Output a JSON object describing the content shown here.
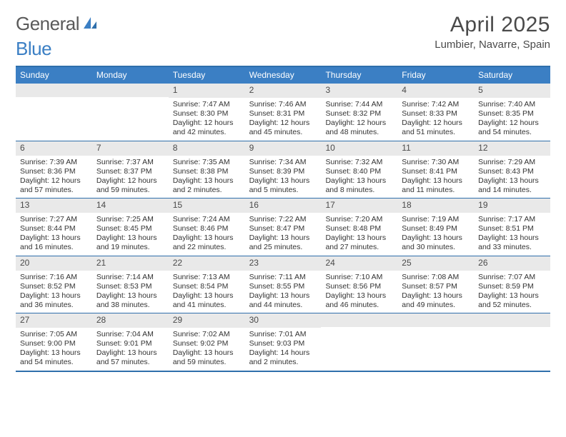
{
  "logo": {
    "text_a": "General",
    "text_b": "Blue"
  },
  "header": {
    "month_title": "April 2025",
    "location": "Lumbier, Navarre, Spain"
  },
  "colors": {
    "header_bar": "#3b7fc4",
    "header_border": "#2f6fab",
    "daynum_bg": "#e9e9e9",
    "text": "#333333",
    "title_text": "#4a4a4a"
  },
  "weekdays": [
    "Sunday",
    "Monday",
    "Tuesday",
    "Wednesday",
    "Thursday",
    "Friday",
    "Saturday"
  ],
  "weeks": [
    [
      {
        "n": "",
        "sunrise": "",
        "sunset": "",
        "daylight": ""
      },
      {
        "n": "",
        "sunrise": "",
        "sunset": "",
        "daylight": ""
      },
      {
        "n": "1",
        "sunrise": "Sunrise: 7:47 AM",
        "sunset": "Sunset: 8:30 PM",
        "daylight": "Daylight: 12 hours and 42 minutes."
      },
      {
        "n": "2",
        "sunrise": "Sunrise: 7:46 AM",
        "sunset": "Sunset: 8:31 PM",
        "daylight": "Daylight: 12 hours and 45 minutes."
      },
      {
        "n": "3",
        "sunrise": "Sunrise: 7:44 AM",
        "sunset": "Sunset: 8:32 PM",
        "daylight": "Daylight: 12 hours and 48 minutes."
      },
      {
        "n": "4",
        "sunrise": "Sunrise: 7:42 AM",
        "sunset": "Sunset: 8:33 PM",
        "daylight": "Daylight: 12 hours and 51 minutes."
      },
      {
        "n": "5",
        "sunrise": "Sunrise: 7:40 AM",
        "sunset": "Sunset: 8:35 PM",
        "daylight": "Daylight: 12 hours and 54 minutes."
      }
    ],
    [
      {
        "n": "6",
        "sunrise": "Sunrise: 7:39 AM",
        "sunset": "Sunset: 8:36 PM",
        "daylight": "Daylight: 12 hours and 57 minutes."
      },
      {
        "n": "7",
        "sunrise": "Sunrise: 7:37 AM",
        "sunset": "Sunset: 8:37 PM",
        "daylight": "Daylight: 12 hours and 59 minutes."
      },
      {
        "n": "8",
        "sunrise": "Sunrise: 7:35 AM",
        "sunset": "Sunset: 8:38 PM",
        "daylight": "Daylight: 13 hours and 2 minutes."
      },
      {
        "n": "9",
        "sunrise": "Sunrise: 7:34 AM",
        "sunset": "Sunset: 8:39 PM",
        "daylight": "Daylight: 13 hours and 5 minutes."
      },
      {
        "n": "10",
        "sunrise": "Sunrise: 7:32 AM",
        "sunset": "Sunset: 8:40 PM",
        "daylight": "Daylight: 13 hours and 8 minutes."
      },
      {
        "n": "11",
        "sunrise": "Sunrise: 7:30 AM",
        "sunset": "Sunset: 8:41 PM",
        "daylight": "Daylight: 13 hours and 11 minutes."
      },
      {
        "n": "12",
        "sunrise": "Sunrise: 7:29 AM",
        "sunset": "Sunset: 8:43 PM",
        "daylight": "Daylight: 13 hours and 14 minutes."
      }
    ],
    [
      {
        "n": "13",
        "sunrise": "Sunrise: 7:27 AM",
        "sunset": "Sunset: 8:44 PM",
        "daylight": "Daylight: 13 hours and 16 minutes."
      },
      {
        "n": "14",
        "sunrise": "Sunrise: 7:25 AM",
        "sunset": "Sunset: 8:45 PM",
        "daylight": "Daylight: 13 hours and 19 minutes."
      },
      {
        "n": "15",
        "sunrise": "Sunrise: 7:24 AM",
        "sunset": "Sunset: 8:46 PM",
        "daylight": "Daylight: 13 hours and 22 minutes."
      },
      {
        "n": "16",
        "sunrise": "Sunrise: 7:22 AM",
        "sunset": "Sunset: 8:47 PM",
        "daylight": "Daylight: 13 hours and 25 minutes."
      },
      {
        "n": "17",
        "sunrise": "Sunrise: 7:20 AM",
        "sunset": "Sunset: 8:48 PM",
        "daylight": "Daylight: 13 hours and 27 minutes."
      },
      {
        "n": "18",
        "sunrise": "Sunrise: 7:19 AM",
        "sunset": "Sunset: 8:49 PM",
        "daylight": "Daylight: 13 hours and 30 minutes."
      },
      {
        "n": "19",
        "sunrise": "Sunrise: 7:17 AM",
        "sunset": "Sunset: 8:51 PM",
        "daylight": "Daylight: 13 hours and 33 minutes."
      }
    ],
    [
      {
        "n": "20",
        "sunrise": "Sunrise: 7:16 AM",
        "sunset": "Sunset: 8:52 PM",
        "daylight": "Daylight: 13 hours and 36 minutes."
      },
      {
        "n": "21",
        "sunrise": "Sunrise: 7:14 AM",
        "sunset": "Sunset: 8:53 PM",
        "daylight": "Daylight: 13 hours and 38 minutes."
      },
      {
        "n": "22",
        "sunrise": "Sunrise: 7:13 AM",
        "sunset": "Sunset: 8:54 PM",
        "daylight": "Daylight: 13 hours and 41 minutes."
      },
      {
        "n": "23",
        "sunrise": "Sunrise: 7:11 AM",
        "sunset": "Sunset: 8:55 PM",
        "daylight": "Daylight: 13 hours and 44 minutes."
      },
      {
        "n": "24",
        "sunrise": "Sunrise: 7:10 AM",
        "sunset": "Sunset: 8:56 PM",
        "daylight": "Daylight: 13 hours and 46 minutes."
      },
      {
        "n": "25",
        "sunrise": "Sunrise: 7:08 AM",
        "sunset": "Sunset: 8:57 PM",
        "daylight": "Daylight: 13 hours and 49 minutes."
      },
      {
        "n": "26",
        "sunrise": "Sunrise: 7:07 AM",
        "sunset": "Sunset: 8:59 PM",
        "daylight": "Daylight: 13 hours and 52 minutes."
      }
    ],
    [
      {
        "n": "27",
        "sunrise": "Sunrise: 7:05 AM",
        "sunset": "Sunset: 9:00 PM",
        "daylight": "Daylight: 13 hours and 54 minutes."
      },
      {
        "n": "28",
        "sunrise": "Sunrise: 7:04 AM",
        "sunset": "Sunset: 9:01 PM",
        "daylight": "Daylight: 13 hours and 57 minutes."
      },
      {
        "n": "29",
        "sunrise": "Sunrise: 7:02 AM",
        "sunset": "Sunset: 9:02 PM",
        "daylight": "Daylight: 13 hours and 59 minutes."
      },
      {
        "n": "30",
        "sunrise": "Sunrise: 7:01 AM",
        "sunset": "Sunset: 9:03 PM",
        "daylight": "Daylight: 14 hours and 2 minutes."
      },
      {
        "n": "",
        "sunrise": "",
        "sunset": "",
        "daylight": ""
      },
      {
        "n": "",
        "sunrise": "",
        "sunset": "",
        "daylight": ""
      },
      {
        "n": "",
        "sunrise": "",
        "sunset": "",
        "daylight": ""
      }
    ]
  ]
}
